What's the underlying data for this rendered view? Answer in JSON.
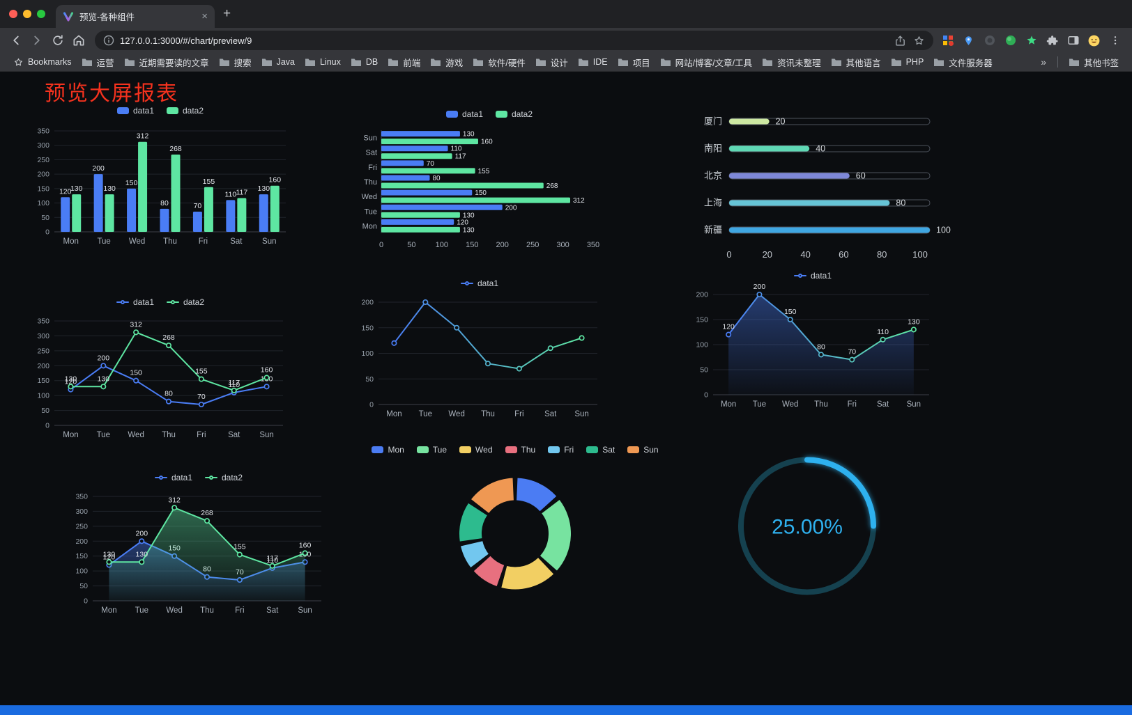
{
  "colors": {
    "accent_blue": "#4a7df5",
    "accent_green": "#5ee6a2",
    "title_red": "#f5321e",
    "gauge_blue": "#2fb1ef",
    "bottom_bar_blue": "#1a6be0"
  },
  "browser": {
    "tab": {
      "title": "预览-各种组件"
    },
    "new_tab_button": "+",
    "close_tab_button": "×",
    "url": "127.0.0.1:3000/#/chart/preview/9",
    "menu_button": "⋮",
    "bookmarks_bar": {
      "star_label": "Bookmarks",
      "folders": [
        "运营",
        "近期需要读的文章",
        "搜索",
        "Java",
        "Linux",
        "DB",
        "前端",
        "游戏",
        "软件/硬件",
        "设计",
        "IDE",
        "项目",
        "网站/博客/文章/工具",
        "资讯未整理",
        "其他语言",
        "PHP",
        "文件服务器"
      ],
      "overflow": "»",
      "other_bookmarks": "其他书签"
    }
  },
  "page": {
    "title": "预览大屏报表"
  },
  "chart_data": [
    {
      "type": "bar",
      "name": "grouped-bar-chart",
      "categories": [
        "Mon",
        "Tue",
        "Wed",
        "Thu",
        "Fri",
        "Sat",
        "Sun"
      ],
      "series": [
        {
          "name": "data1",
          "color": "#4a7df5",
          "values": [
            120,
            200,
            150,
            80,
            70,
            110,
            130
          ]
        },
        {
          "name": "data2",
          "color": "#5ee6a2",
          "values": [
            130,
            130,
            312,
            268,
            155,
            117,
            160
          ]
        }
      ],
      "ylim": [
        0,
        350
      ],
      "yticks": [
        0,
        50,
        100,
        150,
        200,
        250,
        300,
        350
      ],
      "value_labels": true,
      "legend": true
    },
    {
      "type": "hbar",
      "name": "horizontal-bar-chart",
      "categories": [
        "Mon",
        "Tue",
        "Wed",
        "Thu",
        "Fri",
        "Sat",
        "Sun"
      ],
      "series": [
        {
          "name": "data1",
          "color": "#4a7df5",
          "values": [
            120,
            200,
            150,
            80,
            70,
            110,
            130
          ]
        },
        {
          "name": "data2",
          "color": "#5ee6a2",
          "values": [
            130,
            130,
            312,
            268,
            155,
            117,
            160
          ]
        }
      ],
      "xlim": [
        0,
        350
      ],
      "xticks": [
        0,
        50,
        100,
        150,
        200,
        250,
        300,
        350
      ],
      "value_labels": true,
      "legend": true
    },
    {
      "type": "hprogress",
      "name": "city-progress-chart",
      "max": 100,
      "xticks": [
        0,
        20,
        40,
        60,
        80,
        100
      ],
      "items": [
        {
          "label": "厦门",
          "value": 20,
          "color": "#cde8a2"
        },
        {
          "label": "南阳",
          "value": 40,
          "color": "#5fd8b4"
        },
        {
          "label": "北京",
          "value": 60,
          "color": "#7e88d8"
        },
        {
          "label": "上海",
          "value": 80,
          "color": "#66c4d6"
        },
        {
          "label": "新疆",
          "value": 100,
          "color": "#3fa6e2"
        }
      ]
    },
    {
      "type": "line",
      "name": "two-series-line-chart",
      "categories": [
        "Mon",
        "Tue",
        "Wed",
        "Thu",
        "Fri",
        "Sat",
        "Sun"
      ],
      "series": [
        {
          "name": "data1",
          "color": "#4a7df5",
          "values": [
            120,
            200,
            150,
            80,
            70,
            110,
            130
          ]
        },
        {
          "name": "data2",
          "color": "#5ee6a2",
          "values": [
            130,
            130,
            312,
            268,
            155,
            117,
            160
          ]
        }
      ],
      "ylim": [
        0,
        350
      ],
      "yticks": [
        0,
        50,
        100,
        150,
        200,
        250,
        300,
        350
      ],
      "value_labels": true,
      "legend": true
    },
    {
      "type": "line",
      "name": "gradient-line-chart",
      "categories": [
        "Mon",
        "Tue",
        "Wed",
        "Thu",
        "Fri",
        "Sat",
        "Sun"
      ],
      "series": [
        {
          "name": "data1",
          "color": "#4a7df5",
          "gradient": [
            "#4a7df5",
            "#5ee6a2"
          ],
          "values": [
            120,
            200,
            150,
            80,
            70,
            110,
            130
          ]
        }
      ],
      "ylim": [
        0,
        200
      ],
      "yticks": [
        0,
        50,
        100,
        150,
        200
      ],
      "value_labels": false,
      "legend": true
    },
    {
      "type": "line",
      "name": "gradient-area-chart",
      "categories": [
        "Mon",
        "Tue",
        "Wed",
        "Thu",
        "Fri",
        "Sat",
        "Sun"
      ],
      "series": [
        {
          "name": "data1",
          "color": "#4a7df5",
          "gradient": [
            "#4a7df5",
            "#5ee6a2"
          ],
          "area": true,
          "values": [
            120,
            200,
            150,
            80,
            70,
            110,
            130
          ]
        }
      ],
      "ylim": [
        0,
        200
      ],
      "yticks": [
        0,
        50,
        100,
        150,
        200
      ],
      "value_labels": true,
      "legend": true
    },
    {
      "type": "line",
      "name": "two-series-area-chart",
      "categories": [
        "Mon",
        "Tue",
        "Wed",
        "Thu",
        "Fri",
        "Sat",
        "Sun"
      ],
      "series": [
        {
          "name": "data1",
          "color": "#4a7df5",
          "area": true,
          "values": [
            120,
            200,
            150,
            80,
            70,
            110,
            130
          ]
        },
        {
          "name": "data2",
          "color": "#5ee6a2",
          "area": true,
          "values": [
            130,
            130,
            312,
            268,
            155,
            117,
            160
          ]
        }
      ],
      "ylim": [
        0,
        350
      ],
      "yticks": [
        0,
        50,
        100,
        150,
        200,
        250,
        300,
        350
      ],
      "value_labels": true,
      "legend": true
    },
    {
      "type": "donut",
      "name": "weekday-donut-chart",
      "legend": true,
      "slices": [
        {
          "label": "Mon",
          "value": 120,
          "color": "#4b7cf3"
        },
        {
          "label": "Tue",
          "value": 200,
          "color": "#77e3a0"
        },
        {
          "label": "Wed",
          "value": 150,
          "color": "#f2cf63"
        },
        {
          "label": "Thu",
          "value": 80,
          "color": "#e8707f"
        },
        {
          "label": "Fri",
          "value": 70,
          "color": "#72c7ef"
        },
        {
          "label": "Sat",
          "value": 110,
          "color": "#2dbb8e"
        },
        {
          "label": "Sun",
          "value": 130,
          "color": "#ef9853"
        }
      ]
    },
    {
      "type": "gauge",
      "name": "percentage-gauge",
      "value": 25,
      "display": "25.00%",
      "color": "#2fb1ef",
      "track_color": "#15414f"
    }
  ]
}
